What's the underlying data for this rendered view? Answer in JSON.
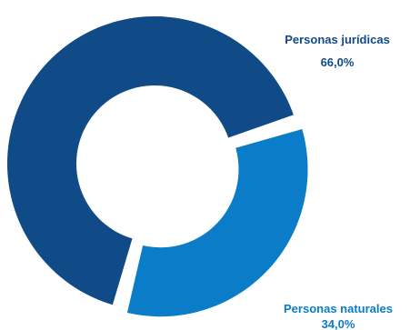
{
  "chart_data": {
    "type": "pie",
    "slices": [
      {
        "label": "Personas jurídicas",
        "value": 66.0,
        "value_label": "66,0%",
        "color": "#104a87"
      },
      {
        "label": "Personas naturales",
        "value": 34.0,
        "value_label": "34,0%",
        "color": "#0a7cc8"
      }
    ]
  }
}
